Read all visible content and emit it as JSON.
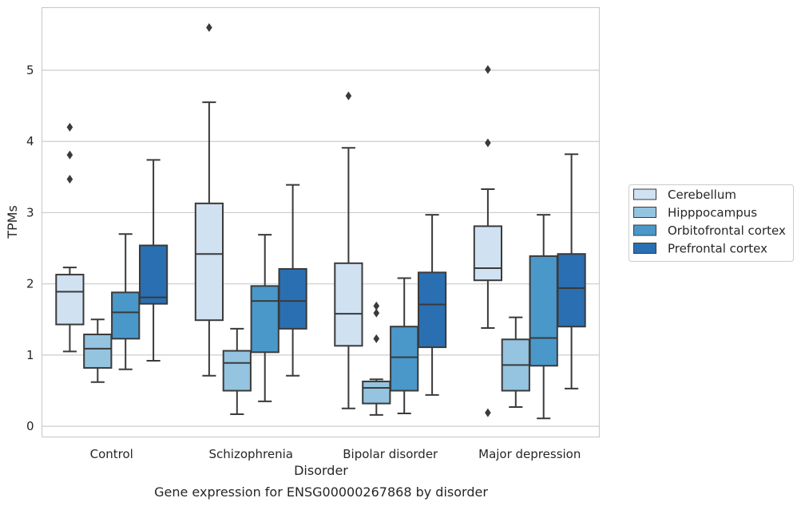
{
  "chart_data": {
    "type": "box",
    "caption": "Gene expression for ENSG00000267868 by disorder",
    "xlabel": "Disorder",
    "ylabel": "TPMs",
    "ylim": [
      -0.15,
      5.88
    ],
    "yticks": [
      0,
      1,
      2,
      3,
      4,
      5
    ],
    "grid": "horizontal",
    "legend_position": "right",
    "categories": [
      "Control",
      "Schizophrenia",
      "Bipolar disorder",
      "Major depression"
    ],
    "series": [
      {
        "name": "Cerebellum",
        "color": "#d0e1f2",
        "boxes": [
          {
            "whislo": 1.05,
            "q1": 1.43,
            "med": 1.89,
            "q3": 2.13,
            "whishi": 2.23,
            "fliers": [
              3.47,
              3.81,
              4.2
            ]
          },
          {
            "whislo": 0.71,
            "q1": 1.49,
            "med": 2.42,
            "q3": 3.13,
            "whishi": 4.55,
            "fliers": [
              5.6
            ]
          },
          {
            "whislo": 0.25,
            "q1": 1.13,
            "med": 1.58,
            "q3": 2.29,
            "whishi": 3.91,
            "fliers": [
              4.64
            ]
          },
          {
            "whislo": 1.38,
            "q1": 2.05,
            "med": 2.22,
            "q3": 2.81,
            "whishi": 3.33,
            "fliers": [
              0.19,
              3.98,
              5.01
            ]
          }
        ]
      },
      {
        "name": "Hipppocampus",
        "color": "#94c4df",
        "boxes": [
          {
            "whislo": 0.62,
            "q1": 0.82,
            "med": 1.09,
            "q3": 1.29,
            "whishi": 1.5,
            "fliers": []
          },
          {
            "whislo": 0.17,
            "q1": 0.5,
            "med": 0.89,
            "q3": 1.06,
            "whishi": 1.37,
            "fliers": []
          },
          {
            "whislo": 0.16,
            "q1": 0.32,
            "med": 0.54,
            "q3": 0.63,
            "whishi": 0.66,
            "fliers": [
              1.23,
              1.59,
              1.69
            ]
          },
          {
            "whislo": 0.27,
            "q1": 0.5,
            "med": 0.86,
            "q3": 1.22,
            "whishi": 1.53,
            "fliers": []
          }
        ]
      },
      {
        "name": "Orbitofrontal cortex",
        "color": "#4a98c9",
        "boxes": [
          {
            "whislo": 0.8,
            "q1": 1.23,
            "med": 1.6,
            "q3": 1.88,
            "whishi": 2.7,
            "fliers": []
          },
          {
            "whislo": 0.35,
            "q1": 1.04,
            "med": 1.76,
            "q3": 1.97,
            "whishi": 2.69,
            "fliers": []
          },
          {
            "whislo": 0.18,
            "q1": 0.5,
            "med": 0.97,
            "q3": 1.4,
            "whishi": 2.08,
            "fliers": []
          },
          {
            "whislo": 0.11,
            "q1": 0.85,
            "med": 1.24,
            "q3": 2.39,
            "whishi": 2.97,
            "fliers": []
          }
        ]
      },
      {
        "name": "Prefrontal cortex",
        "color": "#2a6fb2",
        "boxes": [
          {
            "whislo": 0.92,
            "q1": 1.72,
            "med": 1.81,
            "q3": 2.54,
            "whishi": 3.74,
            "fliers": []
          },
          {
            "whislo": 0.71,
            "q1": 1.37,
            "med": 1.76,
            "q3": 2.21,
            "whishi": 3.39,
            "fliers": []
          },
          {
            "whislo": 0.44,
            "q1": 1.11,
            "med": 1.71,
            "q3": 2.16,
            "whishi": 2.97,
            "fliers": []
          },
          {
            "whislo": 0.53,
            "q1": 1.4,
            "med": 1.94,
            "q3": 2.42,
            "whishi": 3.82,
            "fliers": []
          }
        ]
      }
    ]
  }
}
